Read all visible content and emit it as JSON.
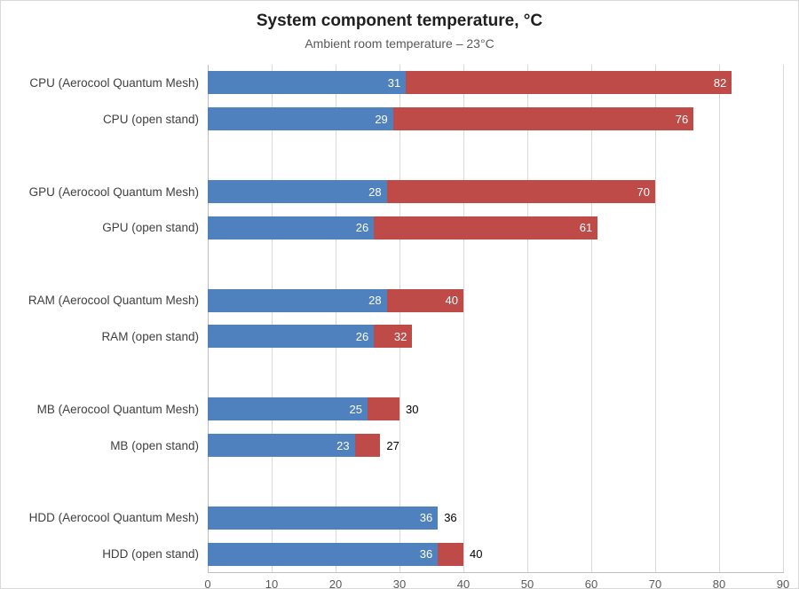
{
  "title": "System component temperature, °C",
  "subtitle": "Ambient room temperature – 23°C",
  "colors": {
    "idle_bar": "#4e81bd",
    "load_bar": "#be4b48",
    "gridline": "#d9d9d9",
    "axis_line": "#bfbfbf",
    "inside_label": "#ffffff",
    "outside_label": "#000000"
  },
  "chart_data": {
    "type": "bar",
    "orientation": "horizontal",
    "stacked": true,
    "title": "System component temperature, °C",
    "subtitle": "Ambient room temperature – 23°C",
    "xlabel": "",
    "ylabel": "",
    "xlim": [
      0,
      90
    ],
    "x_ticks": [
      0,
      10,
      20,
      30,
      40,
      50,
      60,
      70,
      80,
      90
    ],
    "grid": true,
    "legend": false,
    "series_names": [
      "idle_temperature",
      "load_temperature"
    ],
    "rows": [
      {
        "label": "CPU (Aerocool Quantum Mesh)",
        "idle": 31,
        "load": 82,
        "load_label_inside": true
      },
      {
        "label": "CPU (open stand)",
        "idle": 29,
        "load": 76,
        "load_label_inside": true
      },
      {
        "spacer": true
      },
      {
        "label": "GPU (Aerocool Quantum Mesh)",
        "idle": 28,
        "load": 70,
        "load_label_inside": true
      },
      {
        "label": "GPU (open stand)",
        "idle": 26,
        "load": 61,
        "load_label_inside": true
      },
      {
        "spacer": true
      },
      {
        "label": "RAM (Aerocool Quantum Mesh)",
        "idle": 28,
        "load": 40,
        "load_label_inside": true
      },
      {
        "label": "RAM (open stand)",
        "idle": 26,
        "load": 32,
        "load_label_inside": true
      },
      {
        "spacer": true
      },
      {
        "label": "MB (Aerocool Quantum Mesh)",
        "idle": 25,
        "load": 30,
        "load_label_inside": false
      },
      {
        "label": "MB (open stand)",
        "idle": 23,
        "load": 27,
        "load_label_inside": false
      },
      {
        "spacer": true
      },
      {
        "label": "HDD (Aerocool Quantum Mesh)",
        "idle": 36,
        "load": 36,
        "load_label_inside": false
      },
      {
        "label": "HDD (open stand)",
        "idle": 36,
        "load": 40,
        "load_label_inside": false
      }
    ]
  }
}
